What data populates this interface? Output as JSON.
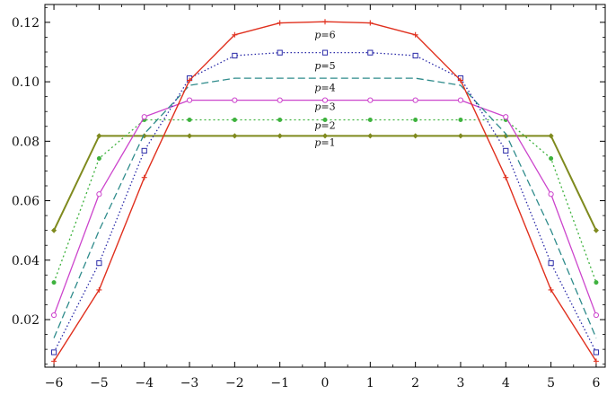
{
  "chart_data": {
    "type": "line",
    "title": "",
    "xlabel": "",
    "ylabel": "",
    "xlim": [
      -6.2,
      6.2
    ],
    "ylim": [
      0.004,
      0.126
    ],
    "x_ticks": [
      -6,
      -5,
      -4,
      -3,
      -2,
      -1,
      0,
      1,
      2,
      3,
      4,
      5,
      6
    ],
    "x_tick_labels": [
      "−6",
      "−5",
      "−4",
      "−3",
      "−2",
      "−1",
      "0",
      "1",
      "2",
      "3",
      "4",
      "5",
      "6"
    ],
    "y_ticks": [
      0.02,
      0.04,
      0.06,
      0.08,
      0.1,
      0.12
    ],
    "y_tick_labels": [
      "0.02",
      "0.04",
      "0.06",
      "0.08",
      "0.10",
      "0.12"
    ],
    "grid": false,
    "legend": "none",
    "x": [
      -6,
      -5,
      -4,
      -3,
      -2,
      -1,
      0,
      1,
      2,
      3,
      4,
      5,
      6
    ],
    "series": [
      {
        "name": "p=1",
        "label_parts": [
          "p",
          "=1"
        ],
        "label_at": [
          0,
          0.0784
        ],
        "color": "#7f8a1e",
        "dash": "",
        "width": 2,
        "marker": "diamond-filled",
        "values": [
          0.05,
          0.0818,
          0.0818,
          0.0818,
          0.0818,
          0.0818,
          0.0818,
          0.0818,
          0.0818,
          0.0818,
          0.0818,
          0.0818,
          0.05
        ]
      },
      {
        "name": "p=2",
        "label_parts": [
          "p",
          "=2"
        ],
        "label_at": [
          0,
          0.0842
        ],
        "color": "#3eb23e",
        "dash": "2,3",
        "width": 1.3,
        "marker": "circle-filled",
        "values": [
          0.0325,
          0.0742,
          0.0872,
          0.0872,
          0.0872,
          0.0872,
          0.0872,
          0.0872,
          0.0872,
          0.0872,
          0.0872,
          0.0742,
          0.0325
        ]
      },
      {
        "name": "p=3",
        "label_parts": [
          "p",
          "=3"
        ],
        "label_at": [
          0,
          0.0905
        ],
        "color": "#cc44cc",
        "dash": "",
        "width": 1.3,
        "marker": "circle-open",
        "values": [
          0.0215,
          0.0622,
          0.0882,
          0.0938,
          0.0938,
          0.0938,
          0.0938,
          0.0938,
          0.0938,
          0.0938,
          0.0882,
          0.0622,
          0.0215
        ]
      },
      {
        "name": "p=4",
        "label_parts": [
          "p",
          "=4"
        ],
        "label_at": [
          0,
          0.0968
        ],
        "color": "#2e8b8b",
        "dash": "8,4",
        "width": 1.3,
        "marker": "none",
        "values": [
          0.0138,
          0.05,
          0.0825,
          0.0988,
          0.1012,
          0.1012,
          0.1012,
          0.1012,
          0.1012,
          0.0988,
          0.0825,
          0.05,
          0.0138
        ]
      },
      {
        "name": "p=5",
        "label_parts": [
          "p",
          "=5"
        ],
        "label_at": [
          0,
          0.1043
        ],
        "color": "#2a2aa8",
        "dash": "1.5,2.5",
        "width": 1.3,
        "marker": "square-open",
        "values": [
          0.009,
          0.039,
          0.0768,
          0.1012,
          0.1088,
          0.1098,
          0.1098,
          0.1098,
          0.1088,
          0.1012,
          0.0768,
          0.039,
          0.009
        ]
      },
      {
        "name": "p=6",
        "label_parts": [
          "p",
          "=6"
        ],
        "label_at": [
          0,
          0.1147
        ],
        "color": "#e0301e",
        "dash": "",
        "width": 1.4,
        "marker": "plus",
        "values": [
          0.006,
          0.03,
          0.0678,
          0.1005,
          0.1158,
          0.1198,
          0.1202,
          0.1198,
          0.1158,
          0.1005,
          0.0678,
          0.03,
          0.006
        ]
      }
    ]
  }
}
